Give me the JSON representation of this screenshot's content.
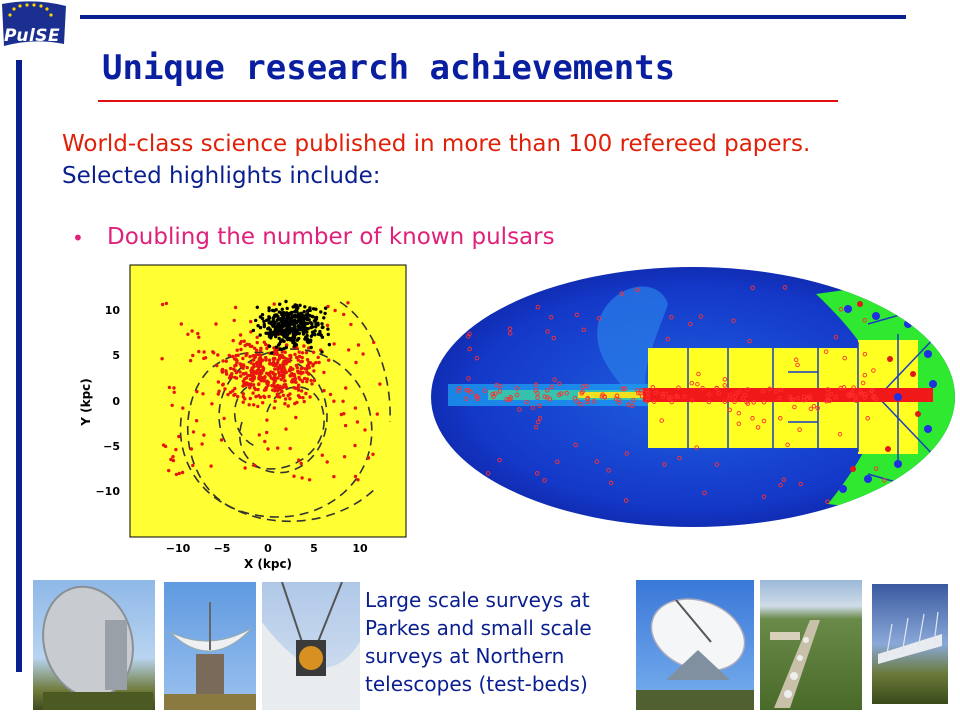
{
  "logo": {
    "text": "PulSE"
  },
  "title": "Unique research achievements",
  "intro": {
    "line1": "World-class science published in more than 100 refereed papers.",
    "line2": "Selected highlights include:"
  },
  "bullet": {
    "marker": "•",
    "text": "Doubling the number of known pulsars"
  },
  "galaxy_plot": {
    "xlabel": "X (kpc)",
    "ylabel": "Y (kpc)",
    "x_ticks": [
      "−10",
      "−5",
      "0",
      "5",
      "10"
    ],
    "y_ticks": [
      "10",
      "5",
      "0",
      "−5",
      "−10"
    ]
  },
  "caption": "Large scale surveys at Parkes and small scale surveys at Northern telescopes (test-beds)",
  "colors": {
    "title": "#0a1fa0",
    "accent_red": "#e02008",
    "bullet_pink": "#e0207a",
    "bar_blue": "#0a1f8f",
    "plot_bg": "#ffff33"
  }
}
